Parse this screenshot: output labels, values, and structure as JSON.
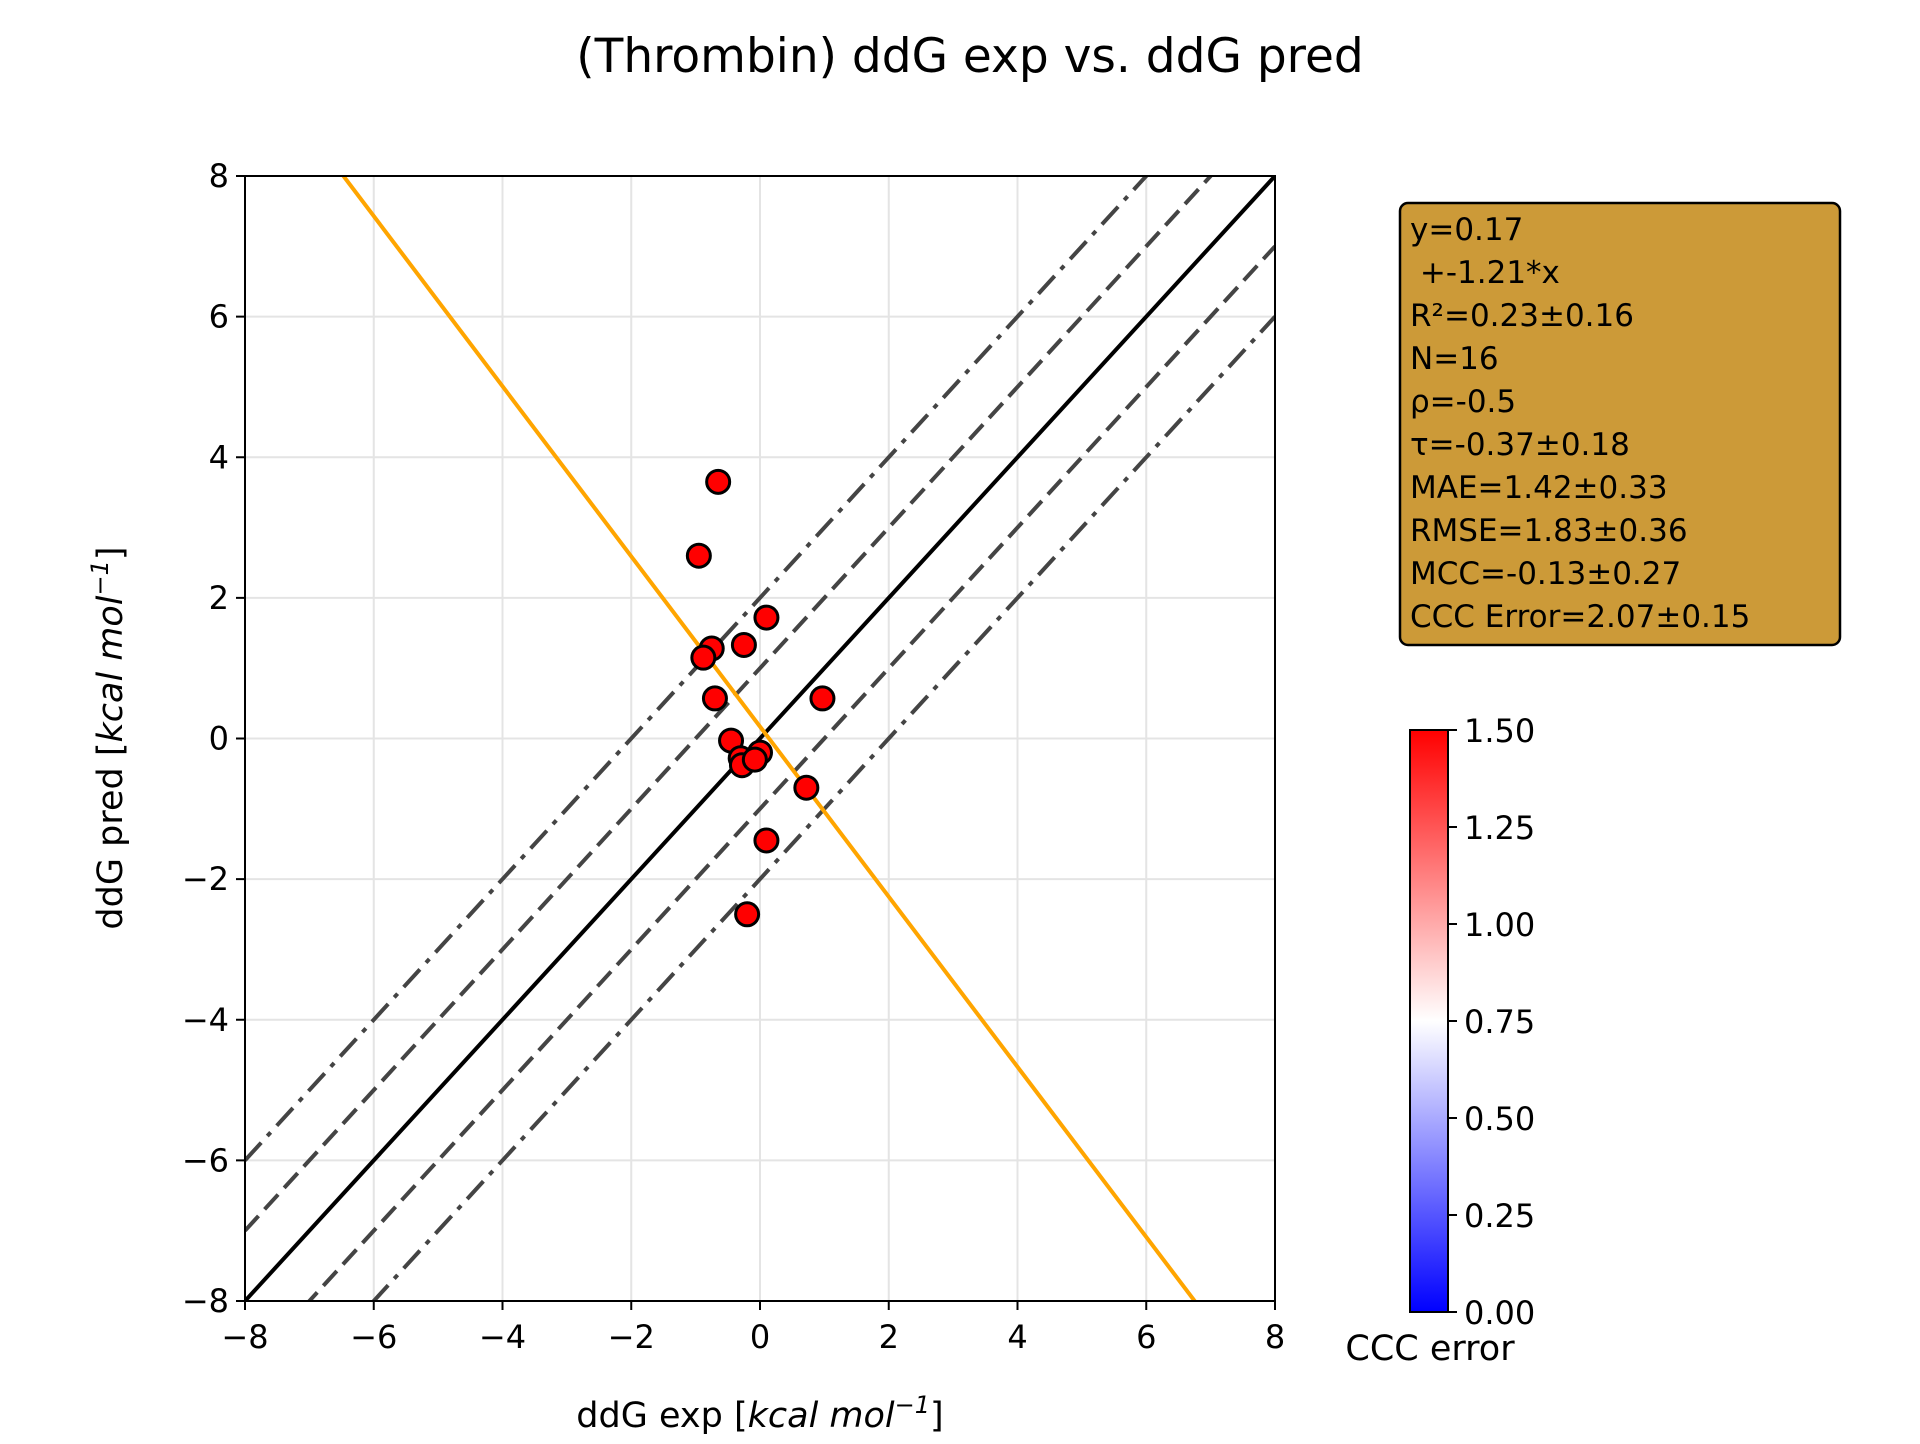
{
  "chart_data": {
    "type": "scatter",
    "title": "(Thrombin) ddG exp vs. ddG pred",
    "xlabel": {
      "prefix": "ddG exp [",
      "unit": "kcal mol",
      "exp": "−1",
      "suffix": "]"
    },
    "ylabel": {
      "prefix": "ddG pred [",
      "unit": "kcal mol",
      "exp": "−1",
      "suffix": "]"
    },
    "xlim": [
      -8,
      8
    ],
    "ylim": [
      -8,
      8
    ],
    "xticks": [
      -8,
      -6,
      -4,
      -2,
      0,
      2,
      4,
      6,
      8
    ],
    "yticks": [
      -8,
      -6,
      -4,
      -2,
      0,
      2,
      4,
      6,
      8
    ],
    "xtick_labels": [
      "−8",
      "−6",
      "−4",
      "−2",
      "0",
      "2",
      "4",
      "6",
      "8"
    ],
    "ytick_labels": [
      "−8",
      "−6",
      "−4",
      "−2",
      "0",
      "2",
      "4",
      "6",
      "8"
    ],
    "grid": true,
    "points": [
      {
        "x": -0.65,
        "y": 3.65
      },
      {
        "x": -0.95,
        "y": 2.6
      },
      {
        "x": 0.1,
        "y": 1.72
      },
      {
        "x": -0.25,
        "y": 1.33
      },
      {
        "x": -0.75,
        "y": 1.28
      },
      {
        "x": -0.88,
        "y": 1.15
      },
      {
        "x": -0.7,
        "y": 0.57
      },
      {
        "x": 0.97,
        "y": 0.57
      },
      {
        "x": -0.45,
        "y": -0.03
      },
      {
        "x": 0.0,
        "y": -0.2
      },
      {
        "x": -0.3,
        "y": -0.28
      },
      {
        "x": -0.28,
        "y": -0.38
      },
      {
        "x": -0.08,
        "y": -0.3
      },
      {
        "x": 0.72,
        "y": -0.7
      },
      {
        "x": 0.1,
        "y": -1.45
      },
      {
        "x": -0.2,
        "y": -2.5
      }
    ],
    "point_color": "#ff0000",
    "reference_lines": [
      {
        "style": "solid",
        "offset": 0,
        "color": "#000000"
      },
      {
        "style": "dashed",
        "offset": 1,
        "color": "#444444"
      },
      {
        "style": "dashed",
        "offset": -1,
        "color": "#444444"
      },
      {
        "style": "dashdot",
        "offset": 2,
        "color": "#444444"
      },
      {
        "style": "dashdot",
        "offset": -2,
        "color": "#444444"
      }
    ],
    "fit_line": {
      "intercept": 0.17,
      "slope": -1.21,
      "color": "#ffa500"
    },
    "stats_box": {
      "background": "#cc9a38",
      "lines": [
        "y=0.17",
        " +-1.21*x",
        "R²=0.23±0.16",
        "N=16",
        "ρ=-0.5",
        "τ=-0.37±0.18",
        "MAE=1.42±0.33",
        "RMSE=1.83±0.36",
        "MCC=-0.13±0.27",
        "CCC Error=2.07±0.15"
      ]
    },
    "colorbar": {
      "label": "CCC error",
      "range": [
        0,
        1.5
      ],
      "ticks": [
        0,
        0.25,
        0.5,
        0.75,
        1.0,
        1.25,
        1.5
      ],
      "tick_labels": [
        "0.00",
        "0.25",
        "0.50",
        "0.75",
        "1.00",
        "1.25",
        "1.50"
      ],
      "colormap": [
        "#0000ff",
        "#ffffff",
        "#ff0000"
      ]
    }
  }
}
